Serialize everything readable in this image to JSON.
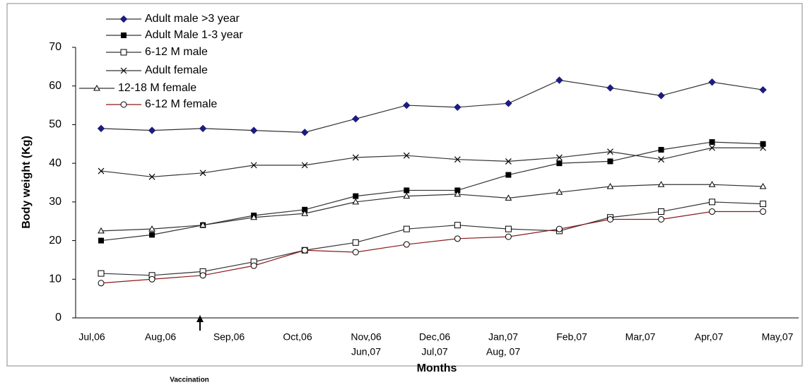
{
  "chart_data": {
    "type": "line",
    "ylabel": "Body weight (Kg)",
    "xlabel": "Months",
    "annotation": "Vaccination",
    "x": [
      0,
      1,
      2,
      3,
      4,
      5,
      6,
      7,
      8,
      9,
      10,
      11,
      12,
      13
    ],
    "xlim": [
      -0.5,
      13.7
    ],
    "x_labels": [
      "Jul,06",
      "Aug,06",
      "Sep,06",
      "Oct,06",
      "Nov,06",
      "Dec,06",
      "Jan,07",
      "Feb,07",
      "Mar,07",
      "Apr,07",
      "May,07"
    ],
    "x_labels_2": [
      null,
      null,
      null,
      null,
      "Jun,07",
      "Jul,07",
      "Aug, 07",
      null,
      null,
      null,
      null
    ],
    "ylim": [
      0,
      70
    ],
    "yticks": [
      0,
      10,
      20,
      30,
      40,
      50,
      60,
      70
    ],
    "series": [
      {
        "name": "Adult male >3 year",
        "color": "#1c1c80",
        "line_color": "#333333",
        "marker": "diamond",
        "values": [
          49,
          48.5,
          49,
          48.5,
          48,
          51.5,
          55,
          54.5,
          55.5,
          61.5,
          59.5,
          57.5,
          61,
          59
        ]
      },
      {
        "name": "Adult Male 1-3 year",
        "color": "#000000",
        "line_color": "#333333",
        "marker": "square-filled",
        "values": [
          20,
          21.5,
          24,
          26.5,
          28,
          31.5,
          33,
          33,
          37,
          40,
          40.5,
          43.5,
          45.5,
          45
        ]
      },
      {
        "name": "6-12 M male",
        "color": "#000000",
        "line_color": "#333333",
        "marker": "square",
        "values": [
          11.5,
          11,
          12,
          14.5,
          17.5,
          19.5,
          23,
          24,
          23,
          22.5,
          26,
          27.5,
          30,
          29.5
        ]
      },
      {
        "name": "Adult female",
        "color": "#000000",
        "line_color": "#333333",
        "marker": "x",
        "values": [
          38,
          36.5,
          37.5,
          39.5,
          39.5,
          41.5,
          42,
          41,
          40.5,
          41.5,
          43,
          41,
          44,
          44
        ]
      },
      {
        "name": "12-18 M female",
        "color": "#000000",
        "line_color": "#333333",
        "marker": "triangle",
        "values": [
          22.5,
          23,
          24,
          26,
          27,
          30,
          31.5,
          32,
          31,
          32.5,
          34,
          34.5,
          34.5,
          34
        ]
      },
      {
        "name": "6-12 M female",
        "color": "#000000",
        "line_color": "#8b1a1a",
        "marker": "circle",
        "values": [
          9,
          10,
          11,
          13.5,
          17.5,
          17,
          19,
          20.5,
          21,
          23,
          25.5,
          25.5,
          27.5,
          27.5
        ]
      }
    ]
  }
}
